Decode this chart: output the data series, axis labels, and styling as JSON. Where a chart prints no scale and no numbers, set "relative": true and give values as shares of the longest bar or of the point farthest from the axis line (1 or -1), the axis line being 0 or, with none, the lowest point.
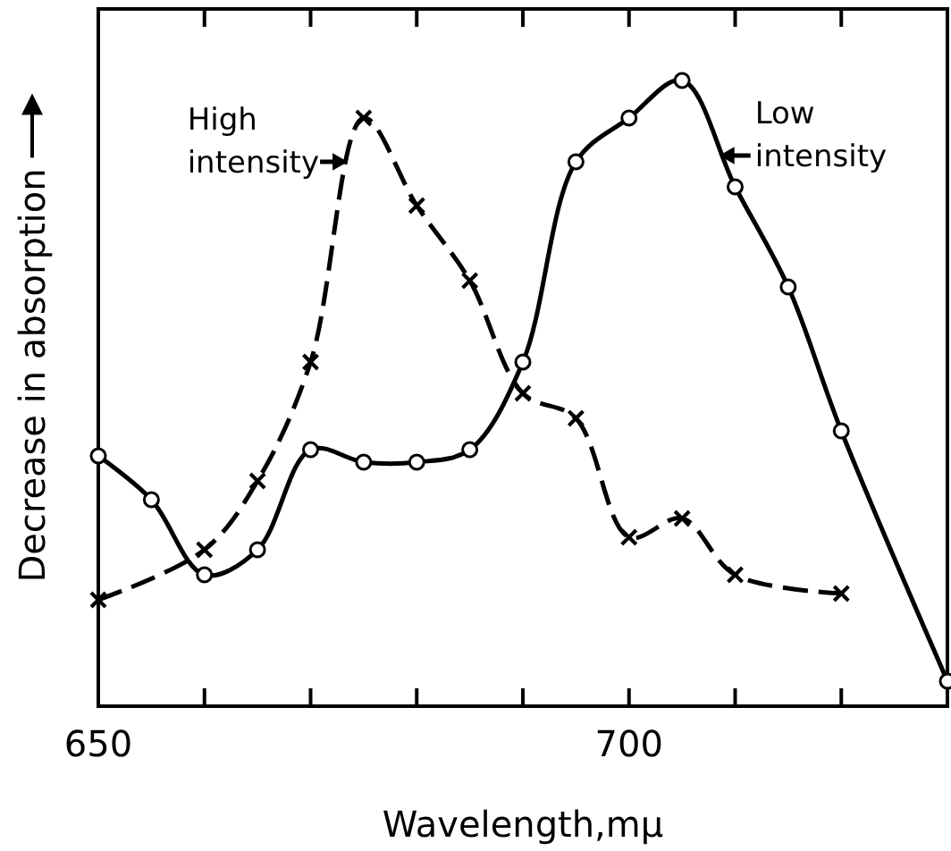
{
  "chart_data": {
    "type": "line",
    "relative": true,
    "xlabel": "Wavelength,mµ",
    "ylabel": "Decrease in absorption",
    "xlim": [
      650,
      730
    ],
    "xticks": [
      650,
      {
        "value": 660,
        "label": null
      },
      {
        "value": 670,
        "label": null
      },
      {
        "value": 680,
        "label": null
      },
      {
        "value": 690,
        "label": null
      },
      700,
      {
        "value": 710,
        "label": null
      },
      {
        "value": 720,
        "label": null
      },
      {
        "value": 730,
        "label": null
      }
    ],
    "grid": false,
    "series": [
      {
        "color": "#000000",
        "marker": "cross",
        "line_style": "dashed",
        "x": [
          650,
          660,
          665,
          670,
          675,
          680,
          685,
          690,
          695,
          700,
          705,
          710,
          720
        ],
        "values": [
          0.17,
          0.25,
          0.36,
          0.55,
          0.94,
          0.8,
          0.68,
          0.5,
          0.46,
          0.27,
          0.3,
          0.21,
          0.18
        ]
      },
      {
        "color": "#000000",
        "marker": "circle",
        "line_style": "solid",
        "x": [
          650,
          655,
          660,
          665,
          670,
          675,
          680,
          685,
          690,
          695,
          700,
          705,
          710,
          715,
          720,
          730
        ],
        "values": [
          0.4,
          0.33,
          0.21,
          0.25,
          0.41,
          0.39,
          0.39,
          0.41,
          0.55,
          0.87,
          0.94,
          1,
          0.83,
          0.67,
          0.44,
          0.04
        ]
      }
    ],
    "annotations": [
      {
        "text": "High intensity",
        "x": 673.5,
        "y": 0.87
      },
      {
        "text": "Low intensity",
        "x": 708.5,
        "y": 0.88
      }
    ]
  }
}
